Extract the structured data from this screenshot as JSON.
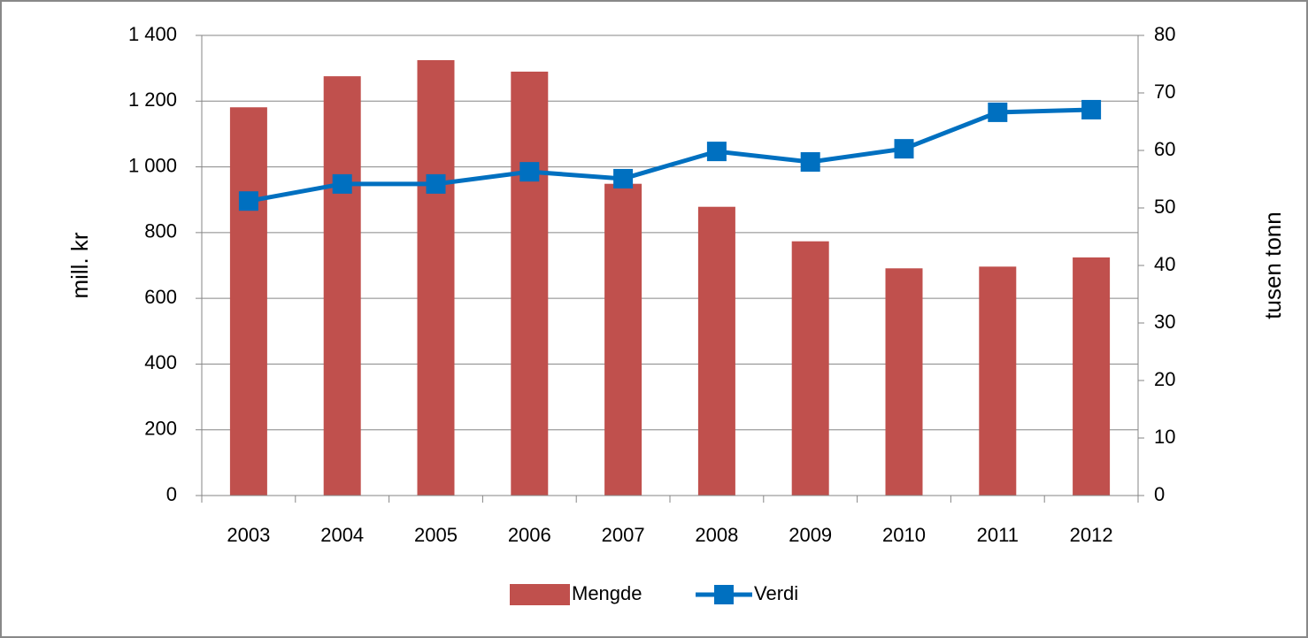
{
  "chart_data": {
    "type": "bar-line",
    "categories": [
      "2003",
      "2004",
      "2005",
      "2006",
      "2007",
      "2008",
      "2009",
      "2010",
      "2011",
      "2012"
    ],
    "series": [
      {
        "name": "Mengde",
        "type": "bar",
        "axis": "y2",
        "color": "#c0504d",
        "values": [
          67.5,
          72.9,
          75.7,
          73.7,
          54.2,
          50.2,
          44.2,
          39.5,
          39.8,
          41.4
        ]
      },
      {
        "name": "Verdi",
        "type": "line",
        "axis": "y",
        "color": "#0070c0",
        "values": [
          896,
          948,
          948,
          985,
          964,
          1047,
          1015,
          1055,
          1166,
          1174
        ]
      }
    ],
    "ylabel": "mill. kr",
    "y2label": "tusen tonn",
    "ylim": [
      0,
      1400
    ],
    "yticks": [
      0,
      200,
      400,
      600,
      800,
      {
        "value": 1000,
        "label": "1 000"
      },
      {
        "value": 1200,
        "label": "1 200"
      },
      {
        "value": 1400,
        "label": "1 400"
      }
    ],
    "y2lim": [
      0,
      80
    ],
    "y2ticks": [
      0,
      10,
      20,
      30,
      40,
      50,
      60,
      70,
      80
    ],
    "grid": true,
    "legend": "bottom"
  }
}
